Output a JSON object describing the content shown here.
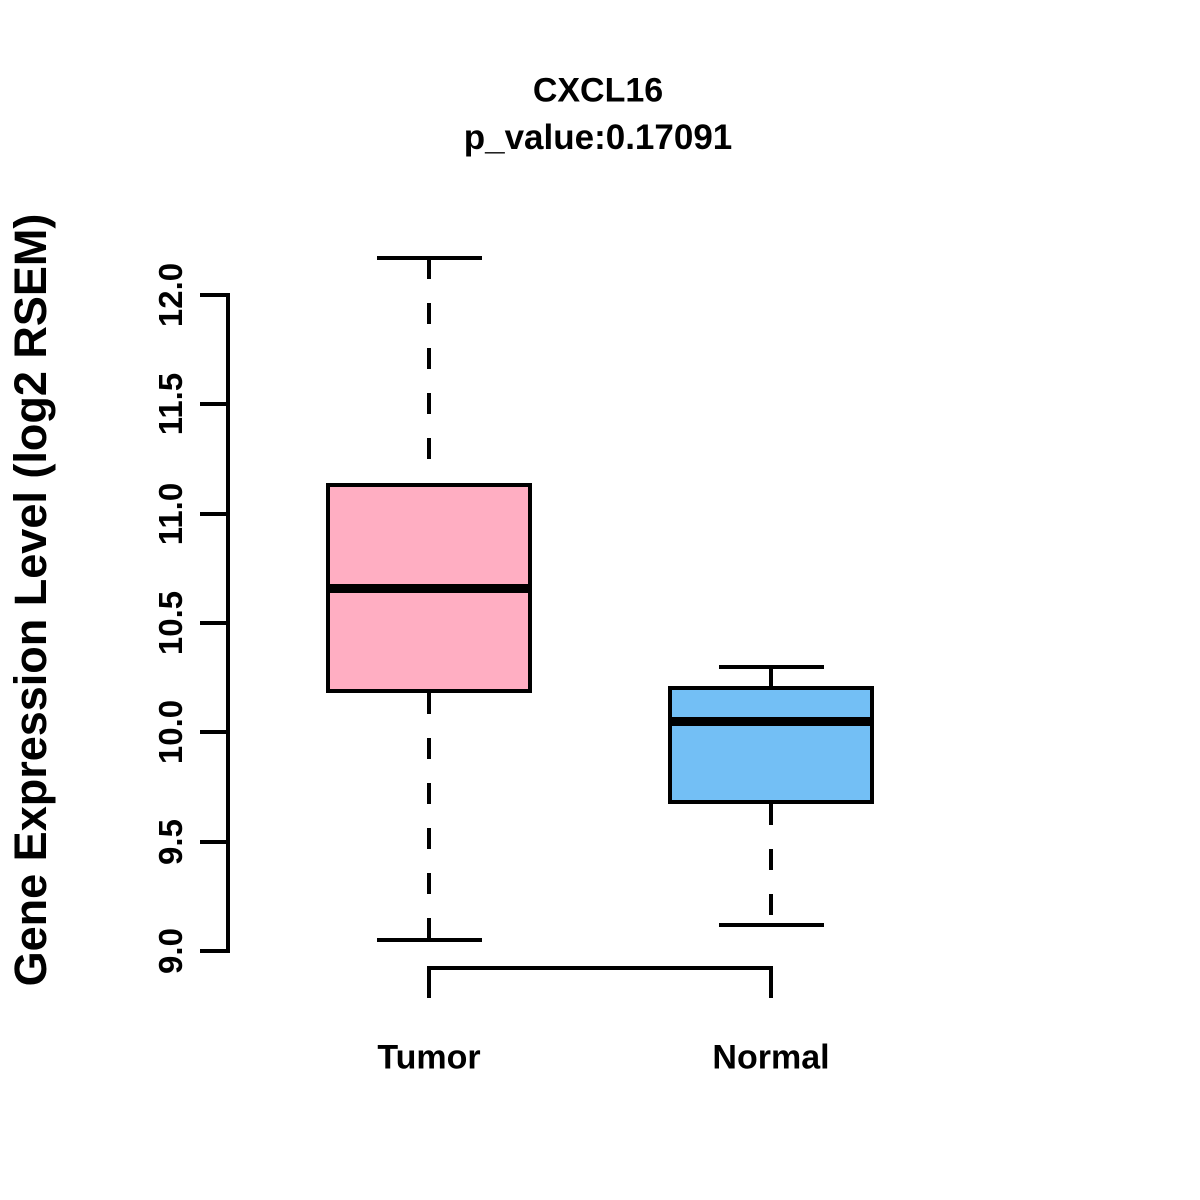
{
  "title": "CXCL16",
  "subtitle": "p_value:0.17091",
  "ylabel": "Gene Expression Level (log2 RSEM)",
  "chart_data": {
    "type": "boxplot",
    "title": "CXCL16",
    "subtitle": "p_value:0.17091",
    "xlabel": "",
    "ylabel": "Gene Expression Level (log2 RSEM)",
    "categories": [
      "Tumor",
      "Normal"
    ],
    "series": [
      {
        "name": "Tumor",
        "whisker_low": 9.05,
        "q1": 10.18,
        "median": 10.66,
        "q3": 11.14,
        "whisker_high": 12.17,
        "color": "#FFAEC2"
      },
      {
        "name": "Normal",
        "whisker_low": 9.12,
        "q1": 9.67,
        "median": 10.05,
        "q3": 10.21,
        "whisker_high": 10.3,
        "color": "#73BFF5"
      }
    ],
    "ylim": [
      9.0,
      12.0
    ],
    "yticks": [
      "9.0",
      "9.5",
      "10.0",
      "10.5",
      "11.0",
      "11.5",
      "12.0"
    ],
    "whisker_line_style": "dashed",
    "box_border_color": "#000000",
    "median_line_color": "#000000",
    "outliers": [],
    "grid": false,
    "legend": "none"
  }
}
